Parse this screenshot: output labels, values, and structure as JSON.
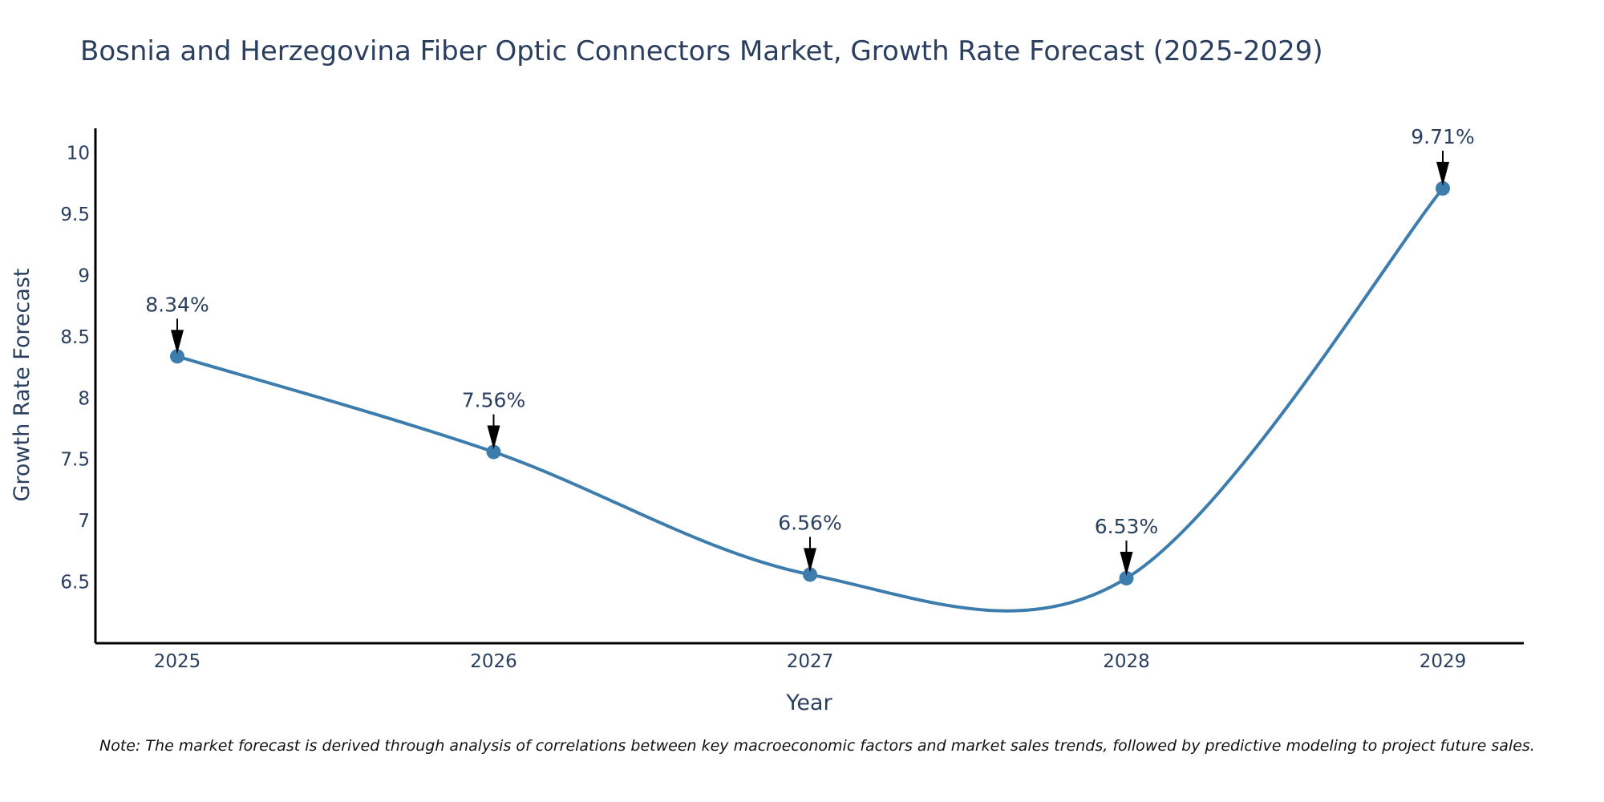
{
  "chart_data": {
    "type": "line",
    "title": "Bosnia and Herzegovina Fiber Optic Connectors Market, Growth Rate Forecast (2025-2029)",
    "xlabel": "Year",
    "ylabel": "Growth Rate Forecast",
    "categories": [
      "2025",
      "2026",
      "2027",
      "2028",
      "2029"
    ],
    "series": [
      {
        "name": "Growth Rate Forecast",
        "values": [
          8.34,
          7.56,
          6.56,
          6.53,
          9.71
        ]
      }
    ],
    "data_labels": [
      "8.34%",
      "7.56%",
      "6.56%",
      "6.53%",
      "9.71%"
    ],
    "y_ticks": [
      6.5,
      7,
      7.5,
      8,
      8.5,
      9,
      9.5,
      10
    ],
    "y_tick_labels": [
      "6.5",
      "7",
      "7.5",
      "8",
      "8.5",
      "9",
      "9.5",
      "10"
    ],
    "ylim": [
      6.0,
      10.2
    ],
    "line_color": "#3d7dad",
    "arrow_color": "#000000",
    "grid": false,
    "note": "Note: The market forecast is derived through analysis of correlations between key macroeconomic factors and market sales trends, followed by predictive modeling to project future sales."
  }
}
